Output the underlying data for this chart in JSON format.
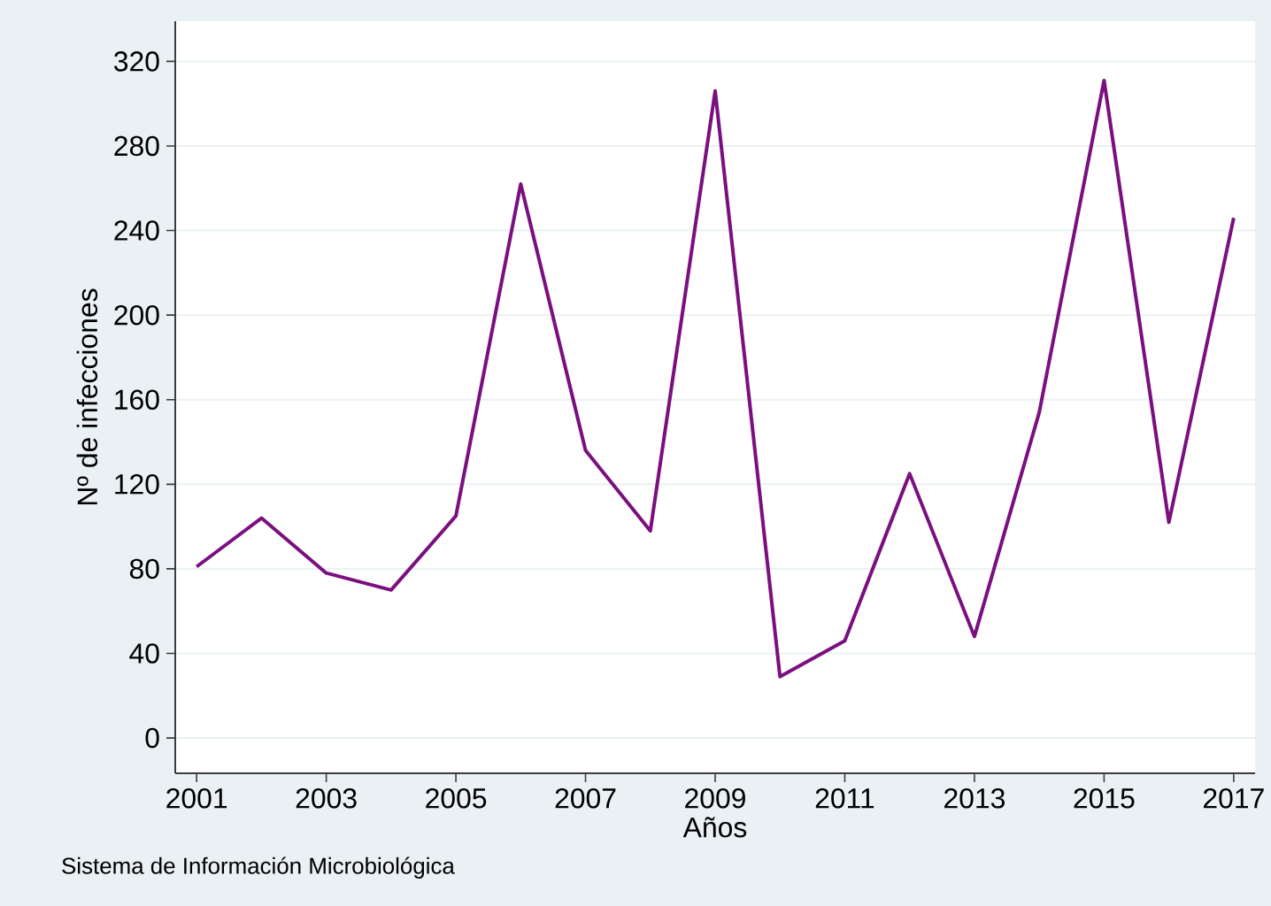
{
  "chart_data": {
    "type": "line",
    "xlabel": "Años",
    "ylabel": "Nº de infecciones",
    "annotations": [
      "Sistema de Información Microbiológica"
    ],
    "x": [
      2001,
      2002,
      2003,
      2004,
      2005,
      2006,
      2007,
      2008,
      2009,
      2010,
      2011,
      2012,
      2013,
      2014,
      2015,
      2016,
      2017
    ],
    "series": [
      {
        "color": "#7b0f7f",
        "values": [
          81,
          104,
          78,
          70,
          105,
          262,
          136,
          98,
          306,
          29,
          46,
          125,
          48,
          154,
          311,
          102,
          246
        ]
      }
    ],
    "xlim": [
      2000.67,
      2017.33
    ],
    "ylim": [
      -16.7,
      339
    ],
    "xticks": [
      2001,
      2003,
      2005,
      2007,
      2009,
      2011,
      2013,
      2015,
      2017
    ],
    "yticks": [
      0,
      40,
      80,
      120,
      160,
      200,
      240,
      280,
      320
    ],
    "grid": "y",
    "marker": "none",
    "line_style": "solid"
  }
}
